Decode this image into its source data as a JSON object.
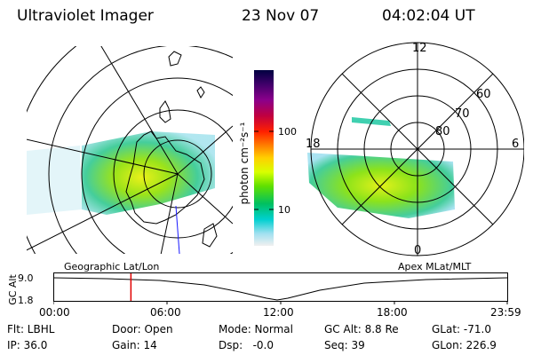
{
  "header": {
    "instrument": "Ultraviolet Imager",
    "date": "23 Nov 07",
    "time": "04:02:04 UT"
  },
  "colorbar": {
    "units_label": "photon cm⁻²s⁻¹",
    "tick_100": "100",
    "tick_10": "10",
    "colors": [
      "#000040",
      "#40006a",
      "#8b008b",
      "#c00040",
      "#ff2000",
      "#ff8000",
      "#ffd000",
      "#d8ff00",
      "#60e000",
      "#00c060",
      "#00d0d0",
      "#a0e0f0",
      "#f0f0f0"
    ]
  },
  "geo_panel": {
    "label": "Geographic Lat/Lon"
  },
  "apex_panel": {
    "label": "Apex MLat/MLT",
    "mlt_top": "12",
    "mlt_left": "18",
    "mlt_right": "6",
    "mlt_bottom": "0",
    "lat_60": "60",
    "lat_70": "70",
    "lat_80": "80"
  },
  "altitude_plot": {
    "ylabel": "GC Alt",
    "ytick_top": "9.0",
    "ytick_bottom": "1.8",
    "xticks": [
      "00:00",
      "06:00",
      "12:00",
      "18:00",
      "23:59"
    ],
    "current_time_fraction": 0.171,
    "marker_color": "#e00000"
  },
  "info": {
    "flt": "Flt: LBHL",
    "ip": "IP: 36.0",
    "door": "Door: Open",
    "gain": "Gain: 14",
    "mode": "Mode: Normal",
    "dsp": "Dsp:   -0.0",
    "gcalt": "GC Alt: 8.8 Re",
    "seq": "Seq: 39",
    "glat": "GLat: -71.0",
    "glon": "GLon: 226.9"
  }
}
